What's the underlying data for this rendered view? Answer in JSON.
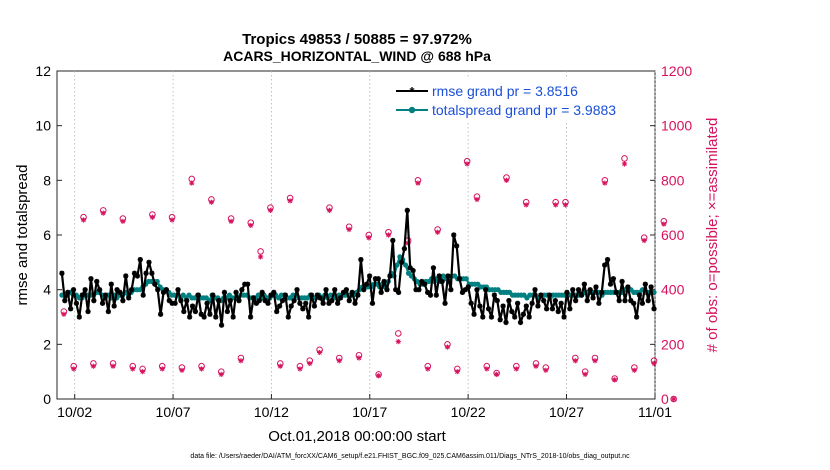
{
  "chart_data": {
    "type": "line",
    "title": "Tropics 49853 / 50885 = 97.972%",
    "subtitle": "ACARS_HORIZONTAL_WIND @ 688 hPa",
    "xlabel": "Oct.01,2018 00:00:00 start",
    "ylabel": "rmse and totalspread",
    "y2label": "# of obs: o=possible; ×=assimilated",
    "footnote": "data file: /Users/raeder/DAI/ATM_forcXX/CAM6_setup/f.e21.FHIST_BGC.f09_025.CAM6assim.011/Diags_NTrS_2018-10/obs_diag_output.nc",
    "xlim": [
      0.6,
      31.0
    ],
    "ylim": [
      0,
      12
    ],
    "y2lim": [
      0,
      1200
    ],
    "x_tick_values": [
      1.5,
      6.5,
      11.5,
      16.5,
      21.5,
      26.5,
      31.0
    ],
    "x_tick_labels": [
      "10/02",
      "10/07",
      "10/12",
      "10/17",
      "10/22",
      "10/27",
      "11/01"
    ],
    "y_ticks": [
      "0",
      "2",
      "4",
      "6",
      "8",
      "10",
      "12"
    ],
    "y2_ticks": [
      "0",
      "200",
      "400",
      "600",
      "800",
      "1000",
      "1200"
    ],
    "colors": {
      "rmse": "#000000",
      "spread": "#008080",
      "obs": "#d6125e",
      "legend_text": "#1a4fd6"
    },
    "series": [
      {
        "name": "rmse grand pr = 3.8516",
        "values": [
          4.6,
          3.6,
          3.9,
          3.3,
          4.0,
          3.5,
          3.0,
          3.8,
          4.0,
          3.2,
          4.4,
          3.6,
          4.3,
          4.0,
          3.5,
          3.8,
          3.2,
          4.2,
          3.4,
          4.0,
          3.9,
          3.6,
          4.5,
          3.7,
          4.0,
          4.6,
          4.5,
          5.1,
          3.8,
          4.6,
          5.0,
          4.6,
          4.2,
          4.0,
          3.1,
          3.9,
          4.0,
          3.6,
          3.5,
          3.5,
          4.0,
          3.6,
          3.2,
          3.6,
          3.0,
          3.4,
          3.2,
          3.8,
          3.1,
          3.0,
          3.5,
          3.1,
          3.8,
          3.0,
          3.6,
          2.7,
          3.9,
          3.2,
          3.6,
          3.0,
          3.9,
          3.6,
          4.0,
          4.2,
          4.2,
          3.0,
          3.7,
          3.5,
          3.6,
          3.9,
          3.6,
          3.5,
          3.8,
          3.9,
          3.2,
          3.4,
          3.6,
          3.8,
          3.0,
          3.4,
          3.6,
          4.0,
          3.5,
          3.3,
          3.5,
          3.0,
          3.8,
          3.4,
          3.8,
          3.7,
          3.5,
          4.0,
          3.5,
          3.6,
          4.0,
          3.5,
          3.7,
          3.9,
          4.0,
          3.6,
          3.9,
          3.5,
          3.8,
          5.1,
          4.0,
          4.2,
          4.5,
          3.5,
          4.4,
          4.4,
          3.9,
          4.3,
          4.0,
          4.5,
          5.8,
          4.0,
          3.9,
          5.0,
          5.5,
          6.9,
          4.8,
          4.7,
          4.0,
          4.0,
          4.3,
          4.2,
          3.9,
          3.8,
          4.8,
          3.8,
          4.5,
          4.3,
          3.5,
          4.5,
          4.0,
          6.0,
          5.6,
          4.4,
          3.9,
          4.0,
          4.1,
          3.5,
          3.1,
          4.0,
          3.4,
          3.0,
          4.0,
          3.3,
          3.0,
          3.8,
          3.6,
          2.9,
          3.4,
          2.8,
          3.6,
          3.2,
          3.0,
          3.5,
          2.8,
          3.1,
          3.4,
          3.0,
          3.5,
          4.0,
          3.4,
          3.8,
          3.6,
          3.3,
          3.8,
          3.3,
          3.6,
          3.2,
          3.5,
          3.0,
          3.9,
          3.3,
          4.0,
          3.6,
          4.0,
          3.8,
          4.2,
          3.6,
          4.0,
          3.7,
          4.1,
          3.5,
          3.9,
          4.9,
          5.1,
          4.2,
          4.4,
          3.9,
          3.6,
          4.3,
          3.6,
          4.1,
          3.6,
          3.5,
          3.0,
          3.8,
          3.5,
          4.2,
          3.6,
          4.1,
          3.3
        ]
      },
      {
        "name": "totalspread grand pr = 3.9883",
        "values": [
          3.8,
          3.8,
          3.8,
          3.9,
          3.8,
          3.8,
          3.7,
          3.7,
          3.8,
          3.8,
          3.8,
          3.8,
          3.9,
          3.9,
          3.8,
          3.7,
          3.8,
          3.7,
          3.8,
          3.7,
          3.8,
          3.8,
          3.9,
          3.8,
          3.9,
          4.0,
          4.0,
          4.0,
          4.1,
          4.2,
          4.3,
          4.3,
          4.3,
          4.3,
          4.1,
          4.0,
          4.0,
          3.9,
          3.8,
          3.8,
          3.8,
          3.7,
          3.8,
          3.7,
          3.8,
          3.7,
          3.7,
          3.8,
          3.7,
          3.7,
          3.7,
          3.6,
          3.8,
          3.7,
          3.7,
          3.6,
          3.7,
          3.7,
          3.8,
          3.7,
          3.7,
          3.7,
          3.8,
          3.8,
          3.8,
          3.7,
          3.7,
          3.7,
          3.8,
          3.7,
          3.8,
          3.7,
          3.7,
          3.8,
          3.8,
          3.7,
          3.8,
          3.8,
          3.7,
          3.7,
          3.8,
          3.8,
          3.7,
          3.7,
          3.7,
          3.7,
          3.8,
          3.7,
          3.7,
          3.8,
          3.7,
          3.8,
          3.7,
          3.8,
          3.8,
          3.7,
          3.8,
          3.8,
          3.8,
          3.8,
          3.8,
          3.8,
          3.9,
          4.0,
          4.1,
          4.1,
          4.1,
          4.1,
          4.2,
          4.2,
          4.1,
          4.2,
          4.1,
          4.3,
          4.6,
          4.5,
          4.9,
          5.2,
          5.1,
          4.9,
          4.6,
          4.5,
          4.4,
          4.3,
          4.2,
          4.2,
          4.3,
          4.3,
          4.4,
          4.3,
          4.4,
          4.3,
          4.5,
          4.4,
          4.3,
          4.5,
          4.5,
          4.4,
          4.4,
          4.4,
          4.4,
          4.2,
          4.2,
          4.2,
          4.2,
          4.1,
          4.1,
          4.1,
          4.0,
          4.0,
          4.0,
          4.0,
          3.9,
          3.9,
          3.9,
          3.9,
          3.8,
          3.8,
          3.8,
          3.8,
          3.8,
          3.7,
          3.8,
          3.8,
          3.8,
          3.7,
          3.8,
          3.8,
          3.8,
          3.7,
          3.8,
          3.8,
          3.8,
          3.8,
          3.8,
          3.8,
          3.8,
          3.8,
          3.8,
          3.8,
          3.8,
          3.9,
          3.9,
          3.9,
          3.9,
          3.9,
          3.9,
          3.8,
          3.9,
          3.9,
          3.9,
          3.9,
          3.9,
          3.9,
          3.9,
          4.0,
          4.0,
          4.0,
          3.9,
          3.9,
          3.9,
          4.0,
          3.9,
          3.9,
          3.9,
          3.9
        ]
      }
    ],
    "obs_possible": [
      320,
      120,
      665,
      130,
      690,
      130,
      660,
      120,
      110,
      675,
      120,
      665,
      115,
      805,
      120,
      730,
      100,
      660,
      150,
      645,
      540,
      700,
      130,
      735,
      120,
      140,
      180,
      700,
      150,
      630,
      160,
      600,
      90,
      610,
      240,
      580,
      800,
      120,
      620,
      200,
      110,
      870,
      740,
      120,
      95,
      810,
      120,
      720,
      130,
      115,
      720,
      720,
      150,
      100,
      150,
      800,
      75,
      880,
      115,
      590,
      140,
      650,
      0
    ],
    "obs_assimilated": [
      310,
      110,
      655,
      120,
      680,
      120,
      650,
      110,
      100,
      665,
      110,
      655,
      105,
      790,
      110,
      720,
      90,
      650,
      140,
      635,
      520,
      690,
      120,
      725,
      110,
      130,
      170,
      690,
      140,
      620,
      150,
      590,
      85,
      600,
      210,
      570,
      790,
      110,
      610,
      190,
      100,
      860,
      730,
      110,
      90,
      800,
      110,
      710,
      120,
      105,
      710,
      710,
      140,
      90,
      140,
      790,
      70,
      860,
      105,
      580,
      130,
      640,
      0
    ]
  }
}
